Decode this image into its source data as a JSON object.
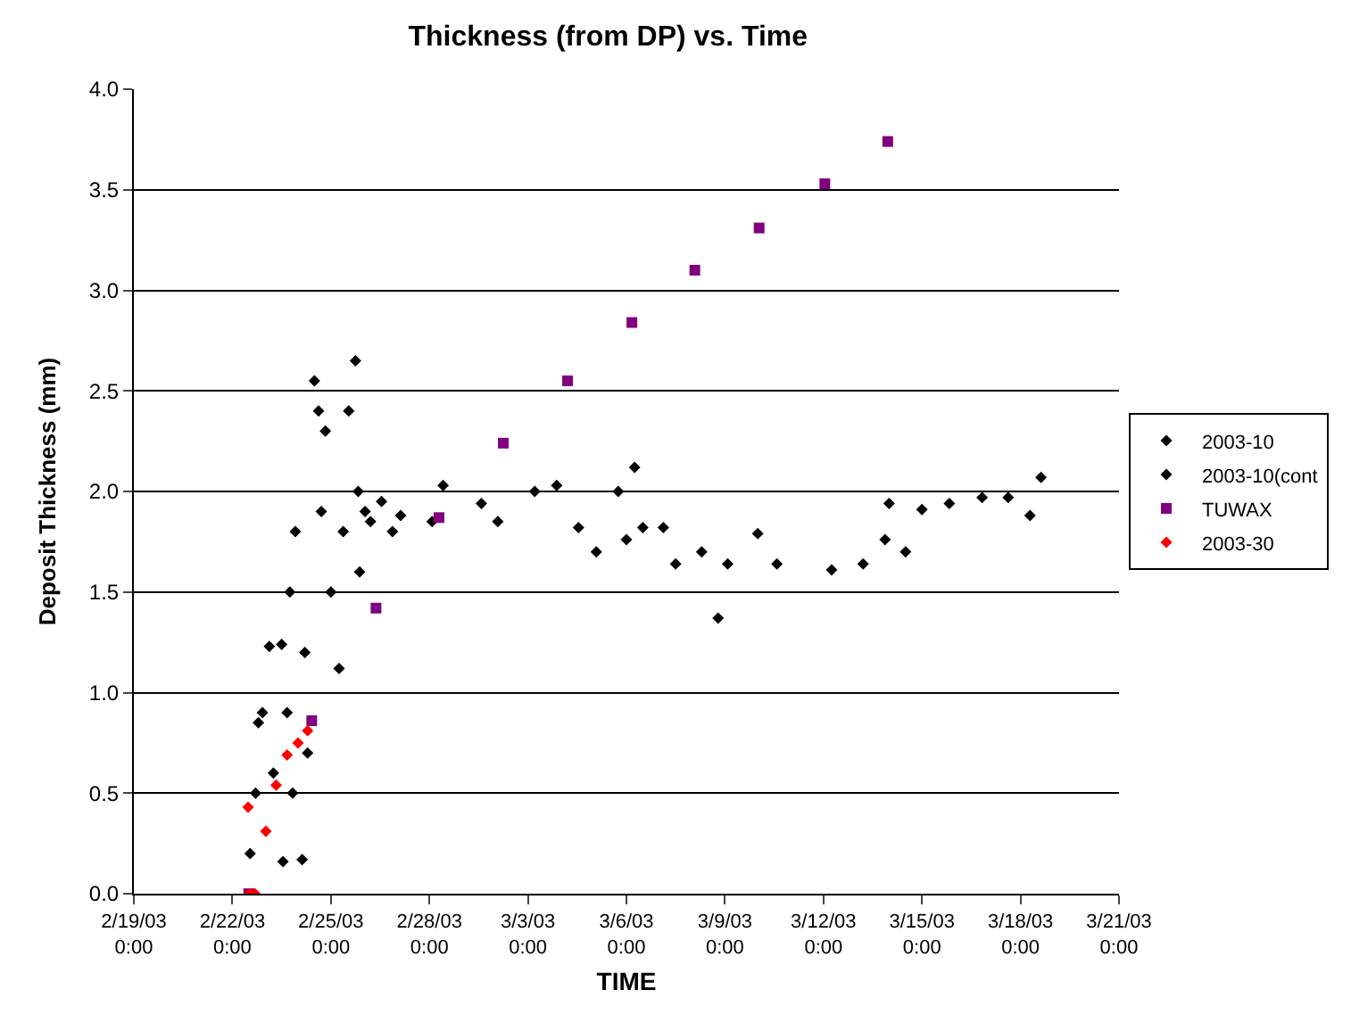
{
  "chart_data": {
    "type": "scatter",
    "title": "Thickness (from DP) vs. Time",
    "xlabel": "TIME",
    "ylabel": "Deposit Thickness (mm)",
    "xlim": [
      "2003-02-19",
      "2003-03-21"
    ],
    "xticks": [
      {
        "value": "2003-02-19",
        "label": "2/19/03\n0:00"
      },
      {
        "value": "2003-02-22",
        "label": "2/22/03\n0:00"
      },
      {
        "value": "2003-02-25",
        "label": "2/25/03\n0:00"
      },
      {
        "value": "2003-02-28",
        "label": "2/28/03\n0:00"
      },
      {
        "value": "2003-03-03",
        "label": "3/3/03\n0:00"
      },
      {
        "value": "2003-03-06",
        "label": "3/6/03\n0:00"
      },
      {
        "value": "2003-03-09",
        "label": "3/9/03\n0:00"
      },
      {
        "value": "2003-03-12",
        "label": "3/12/03\n0:00"
      },
      {
        "value": "2003-03-15",
        "label": "3/15/03\n0:00"
      },
      {
        "value": "2003-03-18",
        "label": "3/18/03\n0:00"
      },
      {
        "value": "2003-03-21",
        "label": "3/21/03\n0:00"
      }
    ],
    "ylim": [
      0,
      4
    ],
    "yticks": [
      {
        "value": 0,
        "label": "0.0"
      },
      0.5,
      {
        "value": 1,
        "label": "1.0"
      },
      1.5,
      {
        "value": 2,
        "label": "2.0"
      },
      2.5,
      {
        "value": 3,
        "label": "3.0"
      },
      3.5,
      {
        "value": 4,
        "label": "4.0"
      }
    ],
    "grid": "y",
    "legend": "right",
    "series": [
      {
        "name": "2003-10",
        "color": "#000000",
        "marker": "diamond",
        "x": [
          "2003-02-22T13:00",
          "2003-02-22T17:00",
          "2003-02-22T19:00",
          "2003-02-22T22:00",
          "2003-02-23T03:00",
          "2003-02-23T06:00",
          "2003-02-23T12:00",
          "2003-02-23T13:00",
          "2003-02-23T16:00",
          "2003-02-23T18:00",
          "2003-02-23T20:00",
          "2003-02-23T22:00",
          "2003-02-24T03:00",
          "2003-02-24T05:00",
          "2003-02-24T07:00",
          "2003-02-24T12:00",
          "2003-02-24T15:00",
          "2003-02-24T17:00",
          "2003-02-24T20:00",
          "2003-02-25T00:00",
          "2003-02-25T06:00",
          "2003-02-25T09:00",
          "2003-02-25T13:00",
          "2003-02-25T18:00",
          "2003-02-25T20:00",
          "2003-02-25T21:00",
          "2003-02-26T01:00",
          "2003-02-26T05:00",
          "2003-02-26T13:00",
          "2003-02-26T21:00",
          "2003-02-27T03:00",
          "2003-02-28T02:00"
        ],
        "values": [
          0.2,
          0.5,
          0.85,
          0.9,
          1.23,
          0.6,
          1.24,
          0.16,
          0.9,
          1.5,
          0.5,
          1.8,
          0.17,
          1.2,
          0.7,
          2.55,
          2.4,
          1.9,
          2.3,
          1.5,
          1.12,
          1.8,
          2.4,
          2.65,
          2.0,
          1.6,
          1.9,
          1.85,
          1.95,
          1.8,
          1.88,
          1.85
        ]
      },
      {
        "name": "2003-10(cont",
        "color": "#000000",
        "marker": "diamond",
        "x": [
          "2003-02-28T10:00",
          "2003-03-01T14:00",
          "2003-03-02T02:00",
          "2003-03-03T05:00",
          "2003-03-03T21:00",
          "2003-03-04T13:00",
          "2003-03-05T02:00",
          "2003-03-05T18:00",
          "2003-03-06T00:00",
          "2003-03-06T06:00",
          "2003-03-06T12:00",
          "2003-03-07T03:00",
          "2003-03-07T12:00",
          "2003-03-08T07:00",
          "2003-03-08T19:00",
          "2003-03-09T02:00",
          "2003-03-10T00:00",
          "2003-03-10T14:00",
          "2003-03-12T06:00",
          "2003-03-13T05:00",
          "2003-03-13T21:00",
          "2003-03-14T00:00",
          "2003-03-14T12:00",
          "2003-03-15T00:00",
          "2003-03-15T20:00",
          "2003-03-16T20:00",
          "2003-03-17T15:00",
          "2003-03-18T07:00",
          "2003-03-18T15:00"
        ],
        "values": [
          2.03,
          1.94,
          1.85,
          2.0,
          2.03,
          1.82,
          1.7,
          2.0,
          1.76,
          2.12,
          1.82,
          1.82,
          1.64,
          1.7,
          1.37,
          1.64,
          1.79,
          1.64,
          1.61,
          1.64,
          1.76,
          1.94,
          1.7,
          1.91,
          1.94,
          1.97,
          1.97,
          1.88,
          2.07
        ]
      },
      {
        "name": "TUWAX",
        "color": "#800080",
        "marker": "square",
        "x": [
          "2003-02-22T12:00",
          "2003-02-24T10:00",
          "2003-02-26T09:00",
          "2003-02-28T07:00",
          "2003-03-02T06:00",
          "2003-03-04T05:00",
          "2003-03-06T04:00",
          "2003-03-08T02:00",
          "2003-03-10T01:00",
          "2003-03-12T01:00",
          "2003-03-13T23:00"
        ],
        "values": [
          0.0,
          0.86,
          1.42,
          1.87,
          2.24,
          2.55,
          2.84,
          3.1,
          3.31,
          3.53,
          3.74
        ]
      },
      {
        "name": "2003-30",
        "color": "#ff0000",
        "marker": "diamond",
        "x": [
          "2003-02-22T11:30",
          "2003-02-22T12:30",
          "2003-02-22T16:30",
          "2003-02-23T00:30",
          "2003-02-23T08:00",
          "2003-02-23T16:00",
          "2003-02-24T00:00",
          "2003-02-24T07:00"
        ],
        "values": [
          0.43,
          0.0,
          0.0,
          0.31,
          0.54,
          0.69,
          0.75,
          0.81
        ]
      }
    ]
  }
}
